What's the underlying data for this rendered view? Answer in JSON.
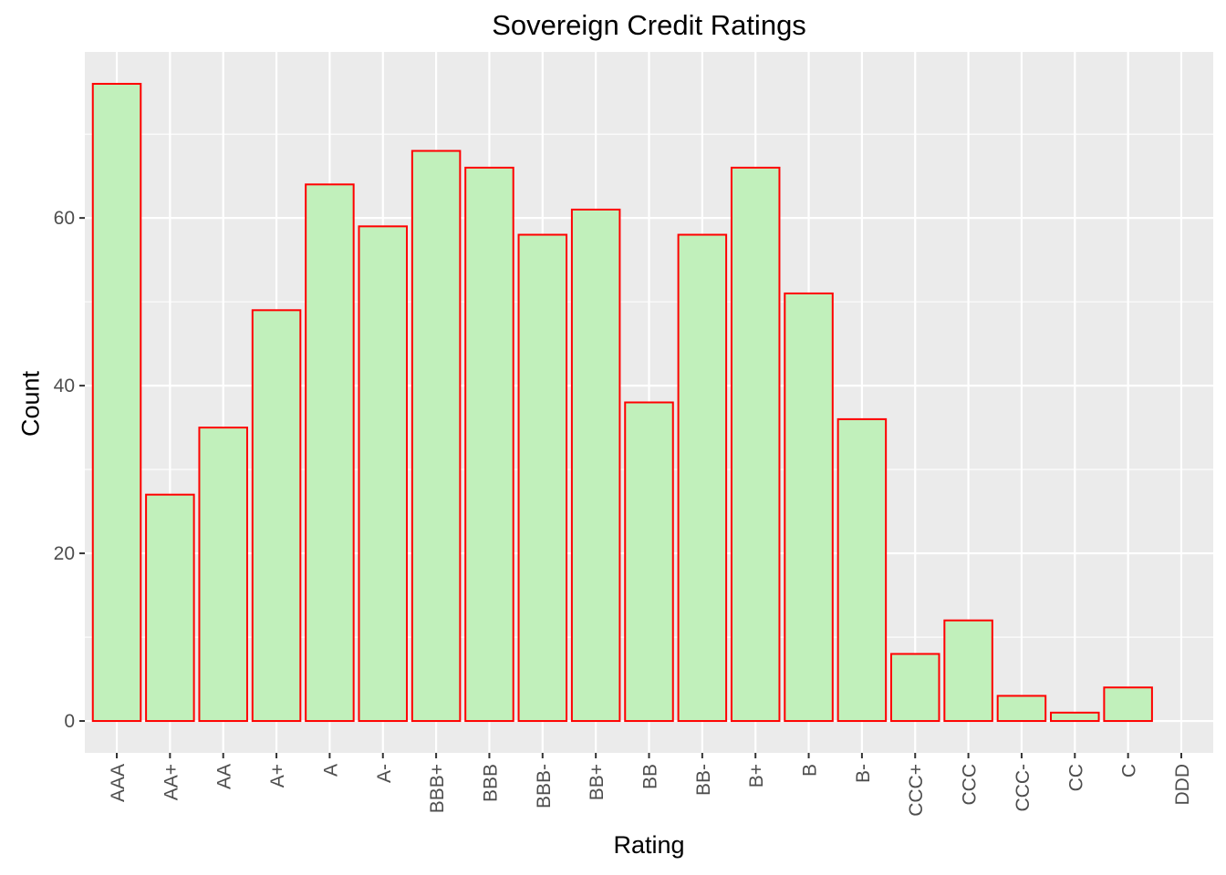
{
  "chart_data": {
    "type": "bar",
    "title": "Sovereign Credit Ratings",
    "xlabel": "Rating",
    "ylabel": "Count",
    "categories": [
      "AAA",
      "AA+",
      "AA",
      "A+",
      "A",
      "A-",
      "BBB+",
      "BBB",
      "BBB-",
      "BB+",
      "BB",
      "BB-",
      "B+",
      "B",
      "B-",
      "CCC+",
      "CCC",
      "CCC-",
      "CC",
      "C",
      "DDD"
    ],
    "values": [
      76,
      27,
      35,
      49,
      64,
      59,
      68,
      66,
      58,
      61,
      38,
      58,
      66,
      51,
      36,
      8,
      12,
      3,
      1,
      4,
      0
    ],
    "ylim": [
      -3.8,
      79.8
    ],
    "yticks": [
      0,
      20,
      40,
      60
    ],
    "grid": true,
    "colors": {
      "panel": "#ebebeb",
      "grid": "#ffffff",
      "bar_fill": "#c1f0bb",
      "bar_stroke": "#ff0000"
    }
  }
}
